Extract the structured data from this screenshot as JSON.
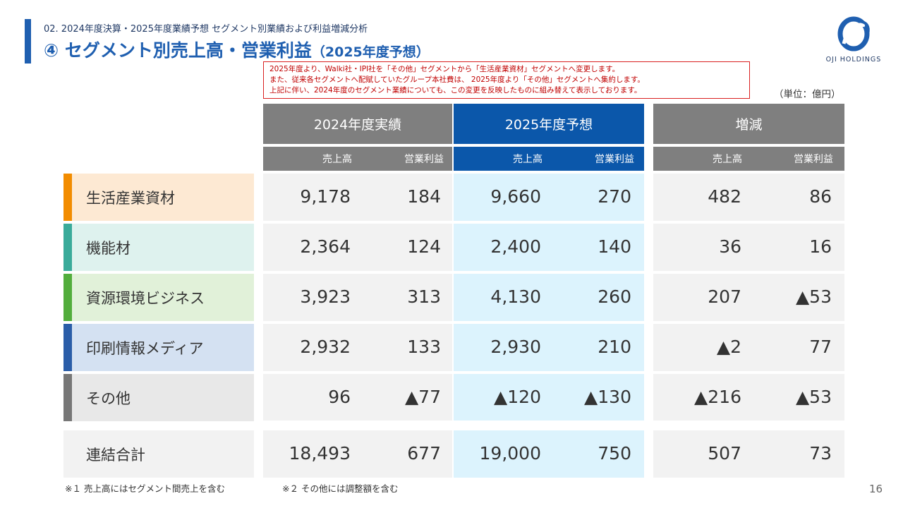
{
  "header": {
    "breadcrumb": "02. 2024年度決算・2025年度業績予想 セグメント別業績および利益増減分析",
    "title": "④ セグメント別売上高・営業利益",
    "title_sub": "（2025年度予想）",
    "logo_text": "OJI HOLDINGS",
    "brand_color": "#1f5fb0"
  },
  "notice": {
    "lines": [
      "2025年度より、Walki社・IPI社を「その他」セグメントから「生活産業資材」セグメントへ変更します。",
      "また、従来各セグメントへ配賦していたグループ本社費は、 2025年度より「その他」セグメントへ集約します。",
      "上記に伴い、2024年度のセグメント業績についても、この変更を反映したものに組み替えて表示しております。"
    ],
    "border_color": "#d92020"
  },
  "unit": "（単位：億円）",
  "table": {
    "groups": [
      "2024年度実績",
      "2025年度予想",
      "増減"
    ],
    "sub_sales": "売上高",
    "sub_profit": "営業利益",
    "rows": [
      {
        "name": "生活産業資材",
        "color": "#f28c00",
        "bg": "#fde9d3",
        "v": [
          "9,178",
          "184",
          "9,660",
          "270",
          "482",
          "86"
        ]
      },
      {
        "name": "機能材",
        "color": "#3aab9a",
        "bg": "#def2ee",
        "v": [
          "2,364",
          "124",
          "2,400",
          "140",
          "36",
          "16"
        ]
      },
      {
        "name": "資源環境ビジネス",
        "color": "#52ad3c",
        "bg": "#e1f1d9",
        "v": [
          "3,923",
          "313",
          "4,130",
          "260",
          "207",
          "▲53"
        ]
      },
      {
        "name": "印刷情報メディア",
        "color": "#2a5da8",
        "bg": "#d4e1f2",
        "v": [
          "2,932",
          "133",
          "2,930",
          "210",
          "▲2",
          "77"
        ]
      },
      {
        "name": "その他",
        "color": "#777777",
        "bg": "#e8e8e8",
        "v": [
          "96",
          "▲77",
          "▲120",
          "▲130",
          "▲216",
          "▲53"
        ]
      }
    ],
    "total": {
      "name": "連結合計",
      "bg": "#f2f2f2",
      "v": [
        "18,493",
        "677",
        "19,000",
        "750",
        "507",
        "73"
      ]
    }
  },
  "footnotes": [
    "※１ 売上高にはセグメント間売上を含む",
    "※２ その他には調整額を含む"
  ],
  "page_number": "16"
}
